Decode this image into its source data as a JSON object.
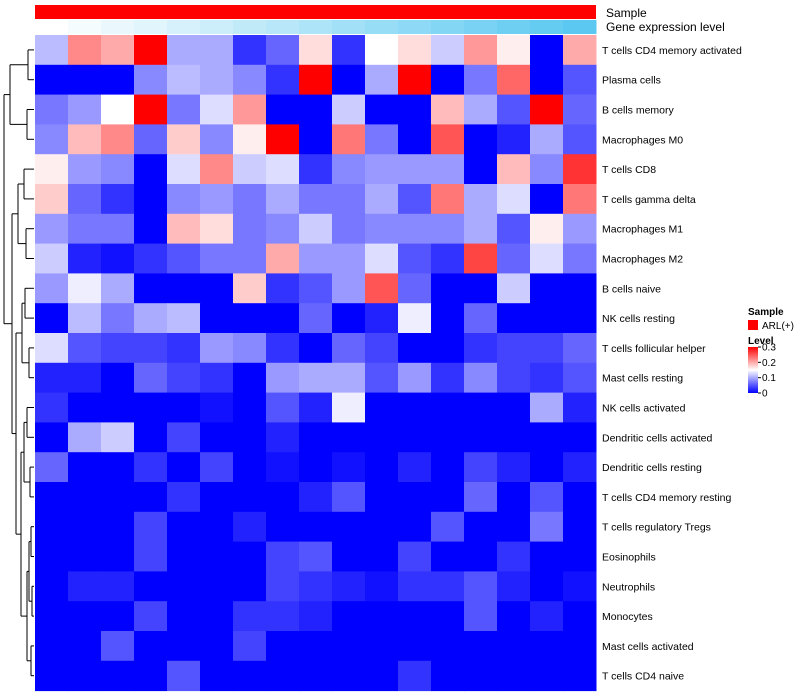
{
  "chart_data": {
    "type": "heatmap",
    "title": "",
    "annotation_tracks": [
      {
        "label": "Sample",
        "color": "#ff0000"
      },
      {
        "label": "Gene expression level",
        "gradient": [
          "#ffffff",
          "#5ac8f0"
        ]
      }
    ],
    "rows": [
      "T cells CD4 memory activated",
      "Plasma cells",
      "B cells memory",
      "Macrophages M0",
      "T cells CD8",
      "T cells gamma delta",
      "Macrophages M1",
      "Macrophages M2",
      "B cells naive",
      "NK cells resting",
      "T cells follicular helper",
      "Mast cells resting",
      "NK cells activated",
      "Dendritic cells activated",
      "Dendritic cells resting",
      "T cells CD4 memory resting",
      "T cells regulatory  Tregs",
      "Eosinophils",
      "Neutrophils",
      "Monocytes",
      "Mast cells activated",
      "T cells CD4 naive"
    ],
    "columns": 17,
    "values": [
      [
        0.11,
        0.22,
        0.2,
        0.3,
        0.1,
        0.1,
        0.03,
        0.06,
        0.17,
        0.03,
        0.15,
        0.17,
        0.12,
        0.21,
        0.16,
        0.0,
        0.2
      ],
      [
        0.0,
        0.0,
        0.0,
        0.08,
        0.11,
        0.1,
        0.08,
        0.03,
        0.3,
        0.0,
        0.1,
        0.3,
        0.0,
        0.07,
        0.24,
        0.0,
        0.05
      ],
      [
        0.07,
        0.09,
        0.15,
        0.3,
        0.07,
        0.13,
        0.21,
        0.0,
        0.0,
        0.12,
        0.0,
        0.0,
        0.19,
        0.1,
        0.05,
        0.3,
        0.06
      ],
      [
        0.08,
        0.19,
        0.22,
        0.06,
        0.18,
        0.08,
        0.16,
        0.3,
        0.0,
        0.23,
        0.07,
        0.0,
        0.25,
        0.0,
        0.02,
        0.1,
        0.05
      ],
      [
        0.16,
        0.09,
        0.08,
        0.0,
        0.13,
        0.22,
        0.12,
        0.13,
        0.03,
        0.08,
        0.09,
        0.09,
        0.09,
        0.0,
        0.19,
        0.08,
        0.27
      ],
      [
        0.18,
        0.06,
        0.03,
        0.0,
        0.08,
        0.09,
        0.07,
        0.1,
        0.07,
        0.07,
        0.1,
        0.05,
        0.23,
        0.1,
        0.13,
        0.0,
        0.23
      ],
      [
        0.09,
        0.07,
        0.07,
        0.0,
        0.19,
        0.17,
        0.07,
        0.08,
        0.12,
        0.07,
        0.08,
        0.08,
        0.08,
        0.1,
        0.05,
        0.16,
        0.09
      ],
      [
        0.12,
        0.02,
        0.01,
        0.03,
        0.05,
        0.07,
        0.07,
        0.2,
        0.09,
        0.09,
        0.13,
        0.05,
        0.03,
        0.26,
        0.06,
        0.13,
        0.07
      ],
      [
        0.09,
        0.14,
        0.1,
        0.0,
        0.0,
        0.0,
        0.18,
        0.03,
        0.05,
        0.09,
        0.25,
        0.06,
        0.0,
        0.0,
        0.12,
        0.0,
        0.0
      ],
      [
        0.0,
        0.11,
        0.07,
        0.1,
        0.11,
        0.0,
        0.0,
        0.0,
        0.06,
        0.0,
        0.02,
        0.14,
        0.0,
        0.06,
        0.0,
        0.0,
        0.0
      ],
      [
        0.13,
        0.05,
        0.04,
        0.04,
        0.03,
        0.09,
        0.08,
        0.03,
        0.0,
        0.06,
        0.04,
        0.0,
        0.0,
        0.03,
        0.04,
        0.04,
        0.06
      ],
      [
        0.02,
        0.02,
        0.0,
        0.06,
        0.04,
        0.03,
        0.0,
        0.09,
        0.1,
        0.1,
        0.05,
        0.09,
        0.03,
        0.08,
        0.04,
        0.03,
        0.05
      ],
      [
        0.03,
        0.0,
        0.0,
        0.0,
        0.0,
        0.01,
        0.0,
        0.05,
        0.02,
        0.14,
        0.0,
        0.0,
        0.0,
        0.0,
        0.0,
        0.1,
        0.02
      ],
      [
        0.0,
        0.1,
        0.12,
        0.0,
        0.04,
        0.0,
        0.0,
        0.02,
        0.0,
        0.0,
        0.0,
        0.0,
        0.0,
        0.0,
        0.0,
        0.0,
        0.0
      ],
      [
        0.06,
        0.0,
        0.0,
        0.03,
        0.0,
        0.04,
        0.0,
        0.01,
        0.0,
        0.01,
        0.0,
        0.02,
        0.0,
        0.04,
        0.02,
        0.0,
        0.02
      ],
      [
        0.0,
        0.0,
        0.0,
        0.0,
        0.03,
        0.0,
        0.0,
        0.0,
        0.02,
        0.05,
        0.0,
        0.0,
        0.0,
        0.06,
        0.0,
        0.05,
        0.0
      ],
      [
        0.0,
        0.0,
        0.0,
        0.04,
        0.0,
        0.0,
        0.02,
        0.0,
        0.0,
        0.0,
        0.0,
        0.0,
        0.05,
        0.0,
        0.0,
        0.07,
        0.0
      ],
      [
        0.0,
        0.0,
        0.0,
        0.04,
        0.0,
        0.0,
        0.0,
        0.04,
        0.05,
        0.0,
        0.0,
        0.04,
        0.0,
        0.0,
        0.03,
        0.0,
        0.0
      ],
      [
        0.0,
        0.02,
        0.02,
        0.0,
        0.0,
        0.0,
        0.0,
        0.04,
        0.03,
        0.02,
        0.01,
        0.03,
        0.03,
        0.05,
        0.02,
        0.0,
        0.01
      ],
      [
        0.0,
        0.0,
        0.0,
        0.04,
        0.0,
        0.0,
        0.03,
        0.03,
        0.02,
        0.0,
        0.0,
        0.0,
        0.0,
        0.05,
        0.0,
        0.02,
        0.0
      ],
      [
        0.0,
        0.0,
        0.05,
        0.0,
        0.0,
        0.0,
        0.04,
        0.0,
        0.0,
        0.0,
        0.0,
        0.0,
        0.0,
        0.0,
        0.0,
        0.0,
        0.0
      ],
      [
        0.0,
        0.0,
        0.0,
        0.0,
        0.05,
        0.0,
        0.0,
        0.0,
        0.0,
        0.0,
        0.0,
        0.03,
        0.0,
        0.0,
        0.0,
        0.0,
        0.0
      ]
    ],
    "color_scale": {
      "min": 0,
      "mid": 0.15,
      "max": 0.3,
      "low": "#0000ff",
      "mid_color": "#ffffff",
      "high": "#ff0000"
    },
    "legend": {
      "sample_title": "Sample",
      "sample_entry": "ARL(+)",
      "sample_color": "#ff0000",
      "level_title": "Level",
      "ticks": [
        0.3,
        0.2,
        0.1,
        0
      ],
      "tick_labels": [
        "0.3",
        "0.2",
        "0.1",
        "0"
      ]
    },
    "dendrogram_merge_order": [
      [
        20,
        21
      ],
      [
        19,
        20
      ],
      [
        17,
        18
      ],
      [
        15,
        16
      ],
      [
        13,
        14
      ],
      [
        11,
        12
      ],
      [
        9,
        10
      ],
      [
        6,
        7
      ],
      [
        4,
        5
      ],
      [
        2,
        3
      ],
      [
        0,
        1
      ]
    ]
  }
}
